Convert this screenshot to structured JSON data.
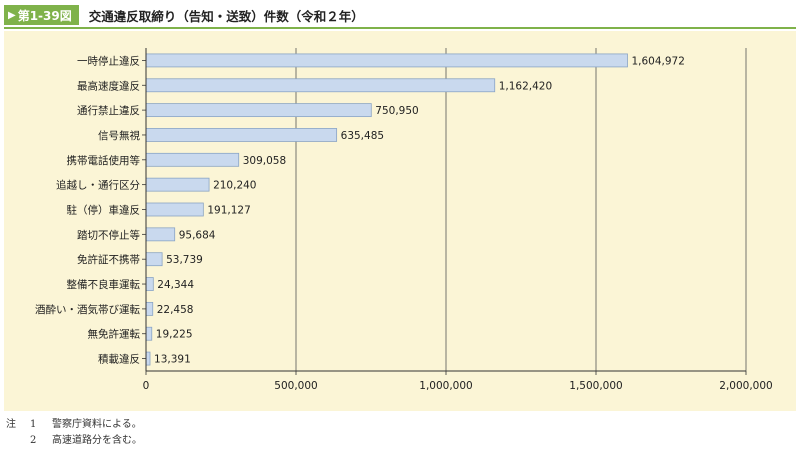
{
  "header": {
    "figure_label": "第1-39図",
    "title": "交通違反取締り（告知・送致）件数（令和２年）"
  },
  "colors": {
    "accent": "#7fb24a",
    "panel_bg": "#fbf5d6",
    "bar_fill": "#c9d9ee",
    "bar_stroke": "#8aa4c4"
  },
  "chart_data": {
    "type": "bar",
    "orientation": "horizontal",
    "categories": [
      "一時停止違反",
      "最高速度違反",
      "通行禁止違反",
      "信号無視",
      "携帯電話使用等",
      "追越し・通行区分",
      "駐（停）車違反",
      "踏切不停止等",
      "免許証不携帯",
      "整備不良車運転",
      "酒酔い・酒気帯び運転",
      "無免許運転",
      "積載違反"
    ],
    "values": [
      1604972,
      1162420,
      750950,
      635485,
      309058,
      210240,
      191127,
      95684,
      53739,
      24344,
      22458,
      19225,
      13391
    ],
    "value_labels": [
      "1,604,972",
      "1,162,420",
      "750,950",
      "635,485",
      "309,058",
      "210,240",
      "191,127",
      "95,684",
      "53,739",
      "24,344",
      "22,458",
      "19,225",
      "13,391"
    ],
    "xlim": [
      0,
      2000000
    ],
    "xticks": [
      0,
      500000,
      1000000,
      1500000,
      2000000
    ],
    "xtick_labels": [
      "0",
      "500,000",
      "1,000,000",
      "1,500,000",
      "2,000,000"
    ],
    "grid": true
  },
  "notes": [
    {
      "head": "注",
      "num": "1",
      "text": "警察庁資料による。"
    },
    {
      "head": "",
      "num": "2",
      "text": "高速道路分を含む。"
    }
  ]
}
